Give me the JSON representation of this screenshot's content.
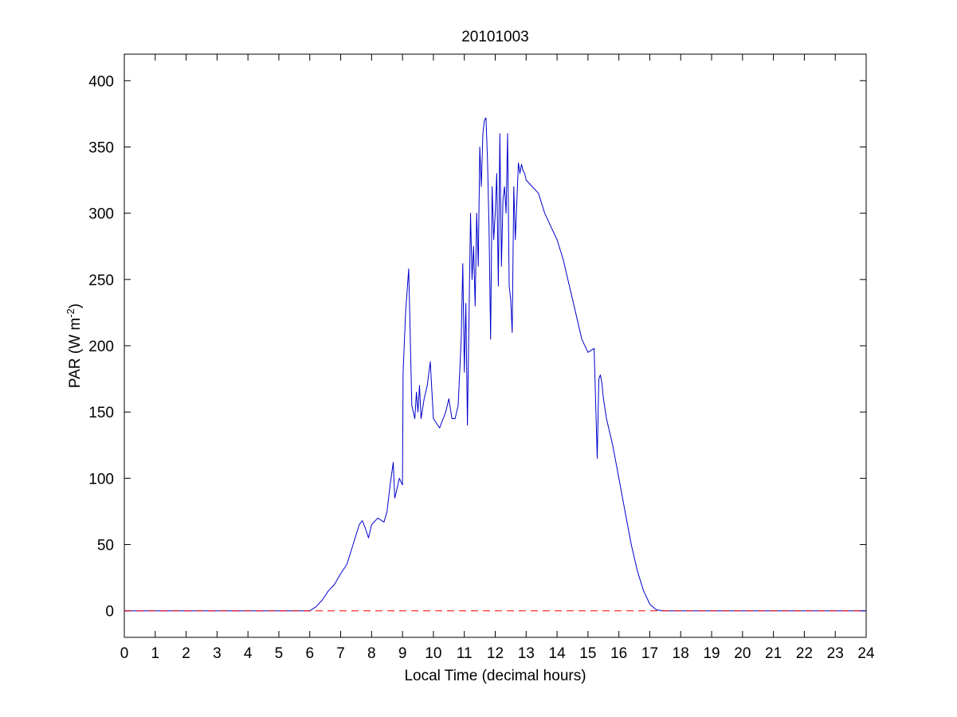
{
  "chart_data": {
    "type": "line",
    "title": "20101003",
    "xlabel": "Local Time (decimal hours)",
    "ylabel": {
      "prefix": "PAR (W m",
      "superscript": "-2",
      "suffix": ")"
    },
    "xlim": [
      0,
      24
    ],
    "ylim": [
      -20,
      420
    ],
    "xticks": [
      0,
      1,
      2,
      3,
      4,
      5,
      6,
      7,
      8,
      9,
      10,
      11,
      12,
      13,
      14,
      15,
      16,
      17,
      18,
      19,
      20,
      21,
      22,
      23,
      24
    ],
    "yticks": [
      0,
      50,
      100,
      150,
      200,
      250,
      300,
      350,
      400
    ],
    "grid": false,
    "legend": "none",
    "series": [
      {
        "color": "#0000cc",
        "style": "solid",
        "x": [
          0,
          6.0,
          6.2,
          6.4,
          6.6,
          6.8,
          7.0,
          7.2,
          7.4,
          7.6,
          7.7,
          7.8,
          7.9,
          8.0,
          8.2,
          8.4,
          8.5,
          8.6,
          8.7,
          8.75,
          8.8,
          8.9,
          9.0,
          9.02,
          9.1,
          9.2,
          9.3,
          9.4,
          9.45,
          9.5,
          9.55,
          9.6,
          9.7,
          9.8,
          9.9,
          10.0,
          10.2,
          10.4,
          10.5,
          10.6,
          10.7,
          10.8,
          10.9,
          10.95,
          11.0,
          11.05,
          11.1,
          11.2,
          11.25,
          11.3,
          11.35,
          11.4,
          11.45,
          11.5,
          11.55,
          11.6,
          11.65,
          11.7,
          11.75,
          11.8,
          11.85,
          11.9,
          11.95,
          12.0,
          12.05,
          12.1,
          12.15,
          12.2,
          12.25,
          12.3,
          12.35,
          12.4,
          12.45,
          12.5,
          12.55,
          12.6,
          12.65,
          12.7,
          12.75,
          12.8,
          12.85,
          12.9,
          12.95,
          13.0,
          13.2,
          13.4,
          13.6,
          13.8,
          14.0,
          14.2,
          14.4,
          14.6,
          14.8,
          15.0,
          15.2,
          15.3,
          15.35,
          15.4,
          15.45,
          15.5,
          15.6,
          15.8,
          16.0,
          16.2,
          16.4,
          16.6,
          16.8,
          17.0,
          17.2,
          17.4,
          17.6,
          17.8,
          18.0,
          18.2,
          24
        ],
        "y": [
          0,
          0,
          3,
          8,
          15,
          20,
          28,
          35,
          50,
          65,
          68,
          62,
          55,
          65,
          70,
          67,
          75,
          95,
          112,
          85,
          90,
          100,
          95,
          180,
          225,
          258,
          155,
          145,
          165,
          150,
          170,
          145,
          160,
          170,
          188,
          145,
          138,
          150,
          160,
          145,
          145,
          155,
          205,
          262,
          180,
          232,
          140,
          300,
          250,
          275,
          230,
          300,
          260,
          350,
          320,
          360,
          370,
          372,
          340,
          290,
          205,
          320,
          280,
          300,
          330,
          245,
          360,
          260,
          310,
          320,
          300,
          360,
          245,
          235,
          210,
          320,
          280,
          310,
          338,
          330,
          337,
          332,
          330,
          325,
          320,
          315,
          300,
          290,
          280,
          265,
          245,
          225,
          205,
          195,
          198,
          115,
          175,
          178,
          172,
          160,
          145,
          125,
          100,
          75,
          50,
          30,
          15,
          5,
          1,
          0,
          0,
          0,
          0,
          0,
          0
        ]
      },
      {
        "color": "#ff0000",
        "style": "dashed",
        "x": [
          0,
          24
        ],
        "y": [
          0,
          0
        ]
      }
    ]
  }
}
